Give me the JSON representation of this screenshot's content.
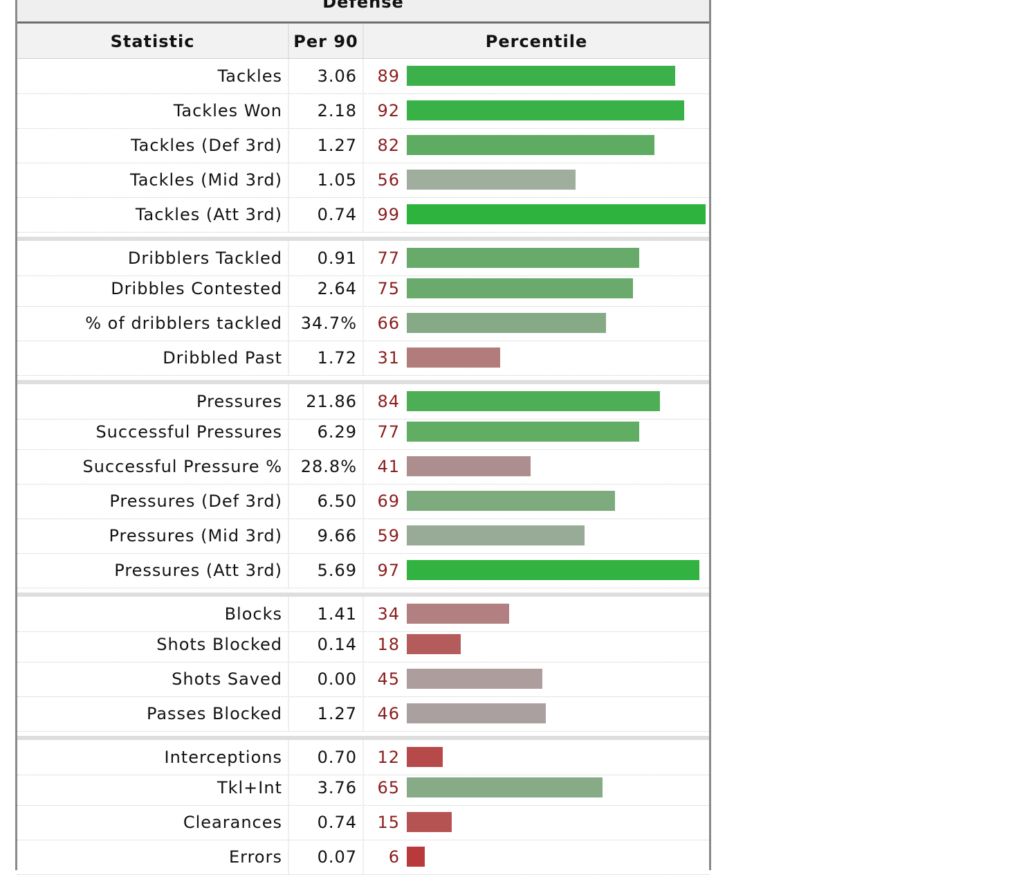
{
  "table": {
    "caption": "Defense",
    "headers": {
      "statistic": "Statistic",
      "per90": "Per 90",
      "percentile": "Percentile"
    },
    "rows": [
      {
        "stat": "Tackles",
        "per90": "3.06",
        "percentile": "89",
        "color": "#3cb04a"
      },
      {
        "stat": "Tackles Won",
        "per90": "2.18",
        "percentile": "92",
        "color": "#38b246"
      },
      {
        "stat": "Tackles (Def 3rd)",
        "per90": "1.27",
        "percentile": "82",
        "color": "#5eab62"
      },
      {
        "stat": "Tackles (Mid 3rd)",
        "per90": "1.05",
        "percentile": "56",
        "color": "#9fae9d"
      },
      {
        "stat": "Tackles (Att 3rd)",
        "per90": "0.74",
        "percentile": "99",
        "color": "#2eb33e"
      },
      {
        "stat": "Dribblers Tackled",
        "per90": "0.91",
        "percentile": "77",
        "color": "#68aa6a"
      },
      {
        "stat": "Dribbles Contested",
        "per90": "2.64",
        "percentile": "75",
        "color": "#6baa6d"
      },
      {
        "stat": "% of dribblers tackled",
        "per90": "34.7%",
        "percentile": "66",
        "color": "#86aa85"
      },
      {
        "stat": "Dribbled Past",
        "per90": "1.72",
        "percentile": "31",
        "color": "#b27c7c"
      },
      {
        "stat": "Pressures",
        "per90": "21.86",
        "percentile": "84",
        "color": "#4eae56"
      },
      {
        "stat": "Successful Pressures",
        "per90": "6.29",
        "percentile": "77",
        "color": "#60ad63"
      },
      {
        "stat": "Successful Pressure %",
        "per90": "28.8%",
        "percentile": "41",
        "color": "#ad8e8e"
      },
      {
        "stat": "Pressures (Def 3rd)",
        "per90": "6.50",
        "percentile": "69",
        "color": "#7dab7e"
      },
      {
        "stat": "Pressures (Mid 3rd)",
        "per90": "9.66",
        "percentile": "59",
        "color": "#97ab96"
      },
      {
        "stat": "Pressures (Att 3rd)",
        "per90": "5.69",
        "percentile": "97",
        "color": "#32b240"
      },
      {
        "stat": "Blocks",
        "per90": "1.41",
        "percentile": "34",
        "color": "#b28080"
      },
      {
        "stat": "Shots Blocked",
        "per90": "0.14",
        "percentile": "18",
        "color": "#b45c5c"
      },
      {
        "stat": "Shots Saved",
        "per90": "0.00",
        "percentile": "45",
        "color": "#ad9d9d"
      },
      {
        "stat": "Passes Blocked",
        "per90": "1.27",
        "percentile": "46",
        "color": "#aaa0a0"
      },
      {
        "stat": "Interceptions",
        "per90": "0.70",
        "percentile": "12",
        "color": "#b64a4a"
      },
      {
        "stat": "Tkl+Int",
        "per90": "3.76",
        "percentile": "65",
        "color": "#86ab86"
      },
      {
        "stat": "Clearances",
        "per90": "0.74",
        "percentile": "15",
        "color": "#b55252"
      },
      {
        "stat": "Errors",
        "per90": "0.07",
        "percentile": "6",
        "color": "#b83a3a"
      }
    ]
  }
}
